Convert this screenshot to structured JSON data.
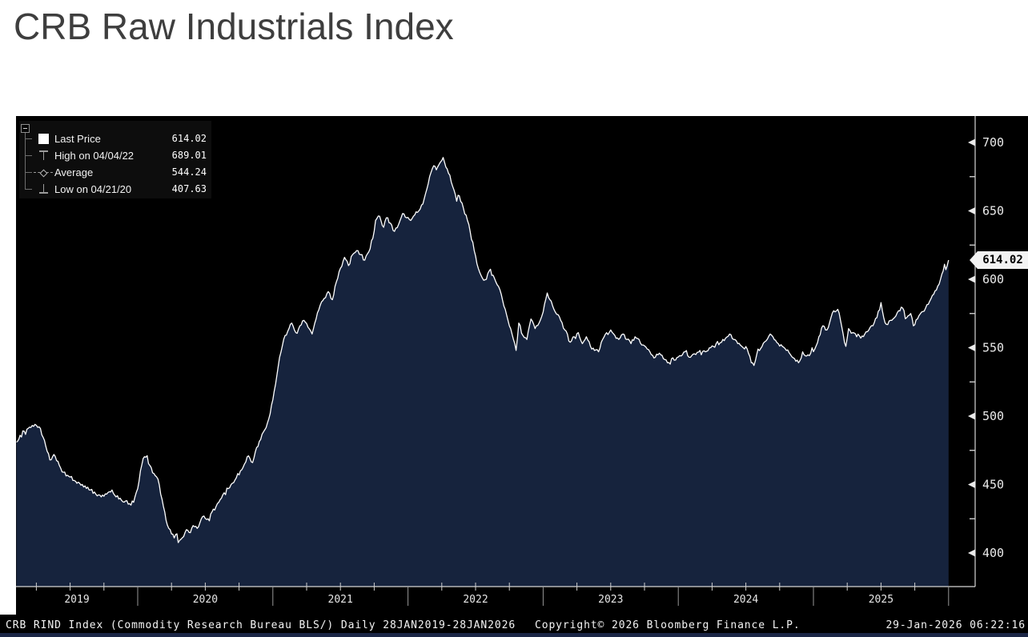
{
  "title": "CRB Raw Industrials Index",
  "colors": {
    "background": "#ffffff",
    "panel": "#000000",
    "area_fill": "#16233d",
    "line": "#ffffff",
    "axis": "#d6d6d6",
    "separator": "#979797",
    "tick": "#cfcfcf",
    "label": "#eaeaea",
    "marker_gray": "#9b9b9b",
    "flag_bg": "#f3f3f3",
    "flag_text": "#000000",
    "bottom_strip": "#1b2646"
  },
  "legend": {
    "rows": [
      {
        "icon": "square-marker",
        "label": "Last Price",
        "value": "614.02"
      },
      {
        "icon": "high-marker",
        "label": "High on 04/04/22",
        "value": "689.01"
      },
      {
        "icon": "average-marker",
        "label": "Average",
        "value": "544.24"
      },
      {
        "icon": "low-marker",
        "label": "Low on 04/21/20",
        "value": "407.63"
      }
    ]
  },
  "price_flag": {
    "value": "614.02"
  },
  "footer": {
    "left": "CRB RIND Index (Commodity Research Bureau BLS/) Daily 28JAN2019-28JAN2026",
    "center": "Copyright© 2026 Bloomberg Finance L.P.",
    "right": "29-Jan-2026 06:22:16"
  },
  "chart_data": {
    "type": "area",
    "title": "CRB Raw Industrials Index",
    "grid": false,
    "legend_position": "top-left",
    "x_axis": {
      "years": [
        2019,
        2020,
        2021,
        2022,
        2023,
        2024,
        2025
      ],
      "range": "28JAN2019-28JAN2026",
      "quarter_ticks": true
    },
    "y_axis": {
      "side": "right",
      "ticks": [
        700,
        650,
        600,
        550,
        500,
        450,
        400
      ],
      "minor_step": 25,
      "ylim": [
        375,
        719
      ]
    },
    "stats": {
      "last": 614.02,
      "high_date": "04/04/22",
      "high": 689.01,
      "average": 544.24,
      "low_date": "04/21/20",
      "low": 407.63
    },
    "series": [
      {
        "name": "Last Price",
        "color": "#ffffff",
        "fill": "#16233d",
        "points": [
          [
            2019.1,
            481
          ],
          [
            2019.13,
            486
          ],
          [
            2019.16,
            489
          ],
          [
            2019.2,
            492
          ],
          [
            2019.24,
            494
          ],
          [
            2019.28,
            491
          ],
          [
            2019.32,
            478
          ],
          [
            2019.35,
            468
          ],
          [
            2019.38,
            472
          ],
          [
            2019.42,
            464
          ],
          [
            2019.45,
            459
          ],
          [
            2019.49,
            456
          ],
          [
            2019.53,
            453
          ],
          [
            2019.57,
            451
          ],
          [
            2019.61,
            449
          ],
          [
            2019.65,
            446
          ],
          [
            2019.69,
            443
          ],
          [
            2019.73,
            441
          ],
          [
            2019.77,
            443
          ],
          [
            2019.81,
            446
          ],
          [
            2019.84,
            441
          ],
          [
            2019.87,
            440
          ],
          [
            2019.91,
            438
          ],
          [
            2019.94,
            436
          ],
          [
            2019.97,
            437
          ],
          [
            2020.0,
            447
          ],
          [
            2020.02,
            460
          ],
          [
            2020.04,
            469
          ],
          [
            2020.06,
            470
          ],
          [
            2020.09,
            464
          ],
          [
            2020.12,
            458
          ],
          [
            2020.15,
            454
          ],
          [
            2020.17,
            443
          ],
          [
            2020.19,
            434
          ],
          [
            2020.21,
            424
          ],
          [
            2020.23,
            418
          ],
          [
            2020.25,
            414
          ],
          [
            2020.27,
            411
          ],
          [
            2020.29,
            414
          ],
          [
            2020.3,
            407.63
          ],
          [
            2020.32,
            410
          ],
          [
            2020.34,
            412
          ],
          [
            2020.36,
            417
          ],
          [
            2020.38,
            415
          ],
          [
            2020.41,
            420
          ],
          [
            2020.44,
            418
          ],
          [
            2020.46,
            422
          ],
          [
            2020.49,
            427
          ],
          [
            2020.52,
            425
          ],
          [
            2020.55,
            430
          ],
          [
            2020.58,
            434
          ],
          [
            2020.61,
            439
          ],
          [
            2020.64,
            444
          ],
          [
            2020.67,
            447
          ],
          [
            2020.7,
            451
          ],
          [
            2020.73,
            455
          ],
          [
            2020.76,
            460
          ],
          [
            2020.79,
            465
          ],
          [
            2020.82,
            471
          ],
          [
            2020.85,
            466
          ],
          [
            2020.88,
            477
          ],
          [
            2020.91,
            483
          ],
          [
            2020.94,
            490
          ],
          [
            2020.97,
            498
          ],
          [
            2021.0,
            512
          ],
          [
            2021.03,
            530
          ],
          [
            2021.05,
            543
          ],
          [
            2021.08,
            556
          ],
          [
            2021.11,
            562
          ],
          [
            2021.14,
            568
          ],
          [
            2021.17,
            561
          ],
          [
            2021.2,
            566
          ],
          [
            2021.23,
            570
          ],
          [
            2021.26,
            565
          ],
          [
            2021.29,
            560
          ],
          [
            2021.32,
            571
          ],
          [
            2021.35,
            581
          ],
          [
            2021.38,
            586
          ],
          [
            2021.41,
            591
          ],
          [
            2021.44,
            585
          ],
          [
            2021.47,
            598
          ],
          [
            2021.5,
            608
          ],
          [
            2021.53,
            616
          ],
          [
            2021.56,
            610
          ],
          [
            2021.59,
            618
          ],
          [
            2021.62,
            621
          ],
          [
            2021.65,
            618
          ],
          [
            2021.68,
            614
          ],
          [
            2021.71,
            620
          ],
          [
            2021.74,
            630
          ],
          [
            2021.76,
            643
          ],
          [
            2021.79,
            646
          ],
          [
            2021.82,
            638
          ],
          [
            2021.84,
            645
          ],
          [
            2021.87,
            641
          ],
          [
            2021.9,
            635
          ],
          [
            2021.93,
            640
          ],
          [
            2021.96,
            648
          ],
          [
            2021.99,
            645
          ],
          [
            2022.02,
            643
          ],
          [
            2022.05,
            647
          ],
          [
            2022.08,
            650
          ],
          [
            2022.11,
            655
          ],
          [
            2022.14,
            666
          ],
          [
            2022.17,
            678
          ],
          [
            2022.19,
            683
          ],
          [
            2022.21,
            680
          ],
          [
            2022.23,
            684
          ],
          [
            2022.26,
            689.01
          ],
          [
            2022.28,
            682
          ],
          [
            2022.31,
            676
          ],
          [
            2022.33,
            668
          ],
          [
            2022.36,
            657
          ],
          [
            2022.38,
            661
          ],
          [
            2022.41,
            652
          ],
          [
            2022.44,
            643
          ],
          [
            2022.46,
            635
          ],
          [
            2022.49,
            621
          ],
          [
            2022.52,
            608
          ],
          [
            2022.55,
            601
          ],
          [
            2022.58,
            600
          ],
          [
            2022.6,
            606
          ],
          [
            2022.63,
            603
          ],
          [
            2022.66,
            596
          ],
          [
            2022.69,
            589
          ],
          [
            2022.72,
            578
          ],
          [
            2022.75,
            566
          ],
          [
            2022.78,
            556
          ],
          [
            2022.8,
            548
          ],
          [
            2022.82,
            568
          ],
          [
            2022.85,
            559
          ],
          [
            2022.88,
            556
          ],
          [
            2022.91,
            571
          ],
          [
            2022.94,
            564
          ],
          [
            2022.97,
            568
          ],
          [
            2022.99,
            573
          ],
          [
            2023.03,
            590
          ],
          [
            2023.06,
            584
          ],
          [
            2023.09,
            576
          ],
          [
            2023.13,
            570
          ],
          [
            2023.16,
            563
          ],
          [
            2023.2,
            554
          ],
          [
            2023.23,
            558
          ],
          [
            2023.26,
            561
          ],
          [
            2023.29,
            553
          ],
          [
            2023.32,
            558
          ],
          [
            2023.35,
            551
          ],
          [
            2023.38,
            548
          ],
          [
            2023.41,
            547
          ],
          [
            2023.44,
            556
          ],
          [
            2023.47,
            561
          ],
          [
            2023.5,
            563
          ],
          [
            2023.53,
            559
          ],
          [
            2023.56,
            556
          ],
          [
            2023.59,
            560
          ],
          [
            2023.62,
            556
          ],
          [
            2023.65,
            553
          ],
          [
            2023.68,
            558
          ],
          [
            2023.71,
            556
          ],
          [
            2023.74,
            552
          ],
          [
            2023.77,
            549
          ],
          [
            2023.8,
            545
          ],
          [
            2023.83,
            543
          ],
          [
            2023.86,
            546
          ],
          [
            2023.89,
            542
          ],
          [
            2023.92,
            539
          ],
          [
            2023.95,
            542
          ],
          [
            2023.98,
            541
          ],
          [
            2024.02,
            544
          ],
          [
            2024.05,
            547
          ],
          [
            2024.09,
            543
          ],
          [
            2024.13,
            545
          ],
          [
            2024.16,
            548
          ],
          [
            2024.2,
            547
          ],
          [
            2024.24,
            550
          ],
          [
            2024.28,
            553
          ],
          [
            2024.32,
            554
          ],
          [
            2024.35,
            557
          ],
          [
            2024.38,
            560
          ],
          [
            2024.41,
            556
          ],
          [
            2024.44,
            553
          ],
          [
            2024.47,
            551
          ],
          [
            2024.51,
            549
          ],
          [
            2024.54,
            539
          ],
          [
            2024.56,
            537
          ],
          [
            2024.59,
            549
          ],
          [
            2024.62,
            551
          ],
          [
            2024.65,
            555
          ],
          [
            2024.68,
            560
          ],
          [
            2024.71,
            556
          ],
          [
            2024.74,
            553
          ],
          [
            2024.77,
            551
          ],
          [
            2024.8,
            548
          ],
          [
            2024.83,
            545
          ],
          [
            2024.86,
            542
          ],
          [
            2024.89,
            539
          ],
          [
            2024.92,
            547
          ],
          [
            2024.95,
            544
          ],
          [
            2024.98,
            546
          ],
          [
            2025.01,
            549
          ],
          [
            2025.04,
            558
          ],
          [
            2025.07,
            566
          ],
          [
            2025.1,
            563
          ],
          [
            2025.13,
            572
          ],
          [
            2025.15,
            577
          ],
          [
            2025.18,
            578
          ],
          [
            2025.2,
            570
          ],
          [
            2025.22,
            560
          ],
          [
            2025.24,
            551
          ],
          [
            2025.26,
            564
          ],
          [
            2025.29,
            561
          ],
          [
            2025.32,
            558
          ],
          [
            2025.35,
            557
          ],
          [
            2025.38,
            560
          ],
          [
            2025.41,
            563
          ],
          [
            2025.44,
            566
          ],
          [
            2025.47,
            572
          ],
          [
            2025.5,
            583
          ],
          [
            2025.52,
            572
          ],
          [
            2025.54,
            567
          ],
          [
            2025.57,
            570
          ],
          [
            2025.6,
            572
          ],
          [
            2025.63,
            577
          ],
          [
            2025.66,
            579
          ],
          [
            2025.69,
            572
          ],
          [
            2025.72,
            575
          ],
          [
            2025.74,
            566
          ],
          [
            2025.77,
            571
          ],
          [
            2025.8,
            576
          ],
          [
            2025.83,
            579
          ],
          [
            2025.86,
            584
          ],
          [
            2025.89,
            589
          ],
          [
            2025.92,
            595
          ],
          [
            2025.94,
            600
          ],
          [
            2025.96,
            606
          ],
          [
            2025.97,
            611
          ],
          [
            2025.98,
            607
          ],
          [
            2026.0,
            614.02
          ]
        ]
      }
    ]
  }
}
